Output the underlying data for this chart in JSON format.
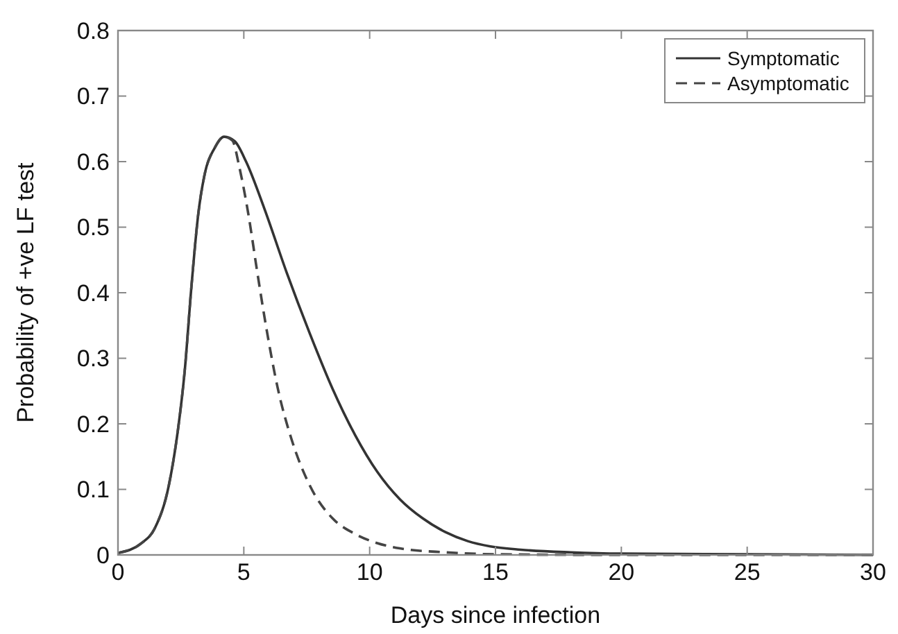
{
  "chart_data": {
    "type": "line",
    "xlabel": "Days since infection",
    "ylabel": "Probability of +ve LF test",
    "xlim": [
      0,
      30
    ],
    "xticks": [
      0,
      5,
      10,
      15,
      20,
      25,
      30
    ],
    "ylim": [
      0,
      0.8
    ],
    "yticks": [
      0,
      0.1,
      0.2,
      0.3,
      0.4,
      0.5,
      0.6,
      0.7,
      0.8
    ],
    "grid": false,
    "legend": "top right",
    "marker": "none",
    "series": [
      {
        "name": "Symptomatic",
        "color": "#333333",
        "line_style": "solid",
        "x": [
          0,
          0.94,
          1.48,
          2.02,
          2.38,
          2.65,
          2.92,
          3.19,
          3.47,
          3.83,
          4.22,
          4.64,
          5.09,
          5.81,
          6.71,
          7.62,
          8.52,
          9.42,
          10.3,
          11.2,
          12.1,
          13,
          13.9,
          14.8,
          16,
          18,
          20,
          25,
          30
        ],
        "values": [
          0.003,
          0.018,
          0.042,
          0.106,
          0.19,
          0.28,
          0.41,
          0.52,
          0.585,
          0.62,
          0.638,
          0.631,
          0.6,
          0.529,
          0.43,
          0.338,
          0.254,
          0.183,
          0.127,
          0.085,
          0.056,
          0.035,
          0.021,
          0.013,
          0.008,
          0.004,
          0.002,
          0.001,
          0
        ]
      },
      {
        "name": "Asymptomatic",
        "color": "#444444",
        "line_style": "dashed",
        "x": [
          0,
          0.94,
          1.48,
          2.02,
          2.38,
          2.65,
          2.92,
          3.19,
          3.47,
          3.83,
          4.22,
          4.55,
          4.82,
          5.18,
          5.54,
          5.9,
          6.35,
          6.9,
          7.62,
          8.52,
          9.42,
          10.3,
          11.2,
          13,
          15,
          20,
          30
        ],
        "values": [
          0.003,
          0.018,
          0.042,
          0.106,
          0.19,
          0.28,
          0.41,
          0.52,
          0.585,
          0.62,
          0.638,
          0.632,
          0.592,
          0.52,
          0.43,
          0.345,
          0.254,
          0.176,
          0.106,
          0.056,
          0.032,
          0.018,
          0.01,
          0.004,
          0.001,
          0,
          0
        ]
      }
    ]
  }
}
